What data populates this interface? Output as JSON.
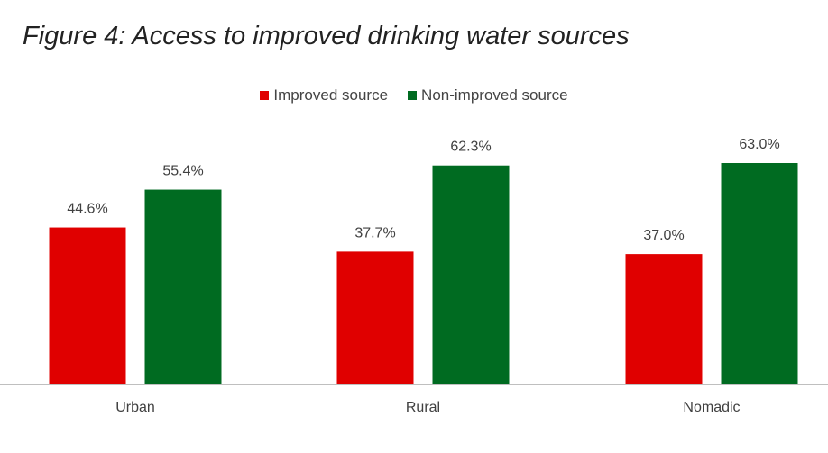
{
  "chart_data": {
    "type": "bar",
    "title": "Figure 4: Access to improved drinking water sources",
    "categories": [
      "Urban",
      "Rural",
      "Nomadic"
    ],
    "series": [
      {
        "name": "Improved source",
        "color": "#e00000",
        "values": [
          44.6,
          37.7,
          37.0
        ],
        "labels": [
          "44.6%",
          "37.7%",
          "37.0%"
        ]
      },
      {
        "name": "Non-improved source",
        "color": "#006b21",
        "values": [
          55.4,
          62.3,
          63.0
        ],
        "labels": [
          "55.4%",
          "62.3%",
          "63.0%"
        ]
      }
    ],
    "ylim": [
      0,
      70
    ],
    "grid": false,
    "legend_position": "top-center",
    "xlabel": "",
    "ylabel": ""
  }
}
